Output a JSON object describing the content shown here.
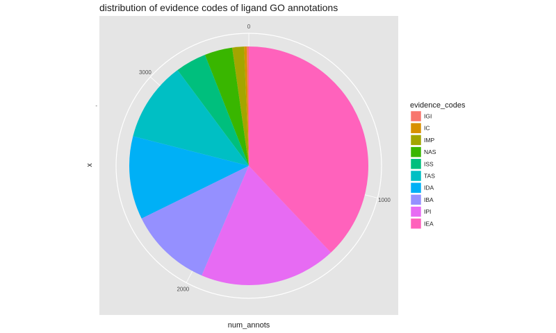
{
  "chart_data": {
    "type": "pie",
    "title": "distribution of evidence codes of ligand GO annotations",
    "xlabel": "num_annots",
    "ylabel": "x",
    "y_tick_label": "-",
    "radial_ticks": [
      {
        "value": 0,
        "label": "0"
      },
      {
        "value": 1000,
        "label": "1000"
      },
      {
        "value": 2000,
        "label": "2000"
      },
      {
        "value": 3000,
        "label": "3000"
      }
    ],
    "legend_title": "evidence_codes",
    "legend_position": "right",
    "total": 3460,
    "categories": [
      "IGI",
      "IC",
      "IMP",
      "NAS",
      "ISS",
      "TAS",
      "IDA",
      "IBA",
      "IPI",
      "IEA"
    ],
    "values": [
      10,
      12,
      55,
      130,
      145,
      375,
      390,
      390,
      640,
      1313
    ],
    "colors": [
      "#F8766D",
      "#D89000",
      "#A3A500",
      "#39B600",
      "#00BF7D",
      "#00BFC4",
      "#00B0F6",
      "#9590FF",
      "#E76BF3",
      "#FF62BC"
    ],
    "panel_background": "#E5E5E5",
    "grid_color": "#FFFFFF"
  }
}
